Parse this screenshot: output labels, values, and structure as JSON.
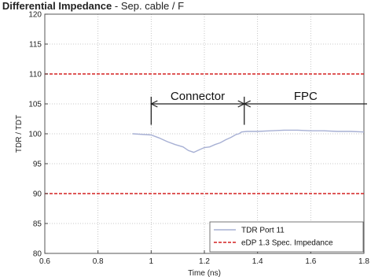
{
  "chart_data": {
    "type": "line",
    "title_fragment_bold": "s Differential Impedance",
    "title_fragment_rest": " - Sep. cable / F",
    "xlabel": "Time (ns)",
    "ylabel": "TDR / TDT",
    "xlim": [
      0.6,
      1.8
    ],
    "ylim": [
      80,
      120
    ],
    "x_ticks": [
      "0.6",
      "0.8",
      "1",
      "1.2",
      "1.4",
      "1.6",
      "1.8"
    ],
    "y_ticks": [
      "80",
      "85",
      "90",
      "95",
      "100",
      "105",
      "110",
      "115",
      "120"
    ],
    "grid": true,
    "legend_position": "bottom-right",
    "series": [
      {
        "name": "TDR Port 11",
        "color": "#a7b0d4",
        "style": "solid",
        "x": [
          0.93,
          1.0,
          1.03,
          1.06,
          1.09,
          1.12,
          1.14,
          1.16,
          1.18,
          1.2,
          1.22,
          1.24,
          1.26,
          1.28,
          1.3,
          1.32,
          1.33,
          1.34,
          1.36,
          1.38,
          1.4,
          1.45,
          1.5,
          1.55,
          1.6,
          1.65,
          1.7,
          1.75,
          1.8
        ],
        "y": [
          100.0,
          99.8,
          99.3,
          98.7,
          98.2,
          97.8,
          97.2,
          96.9,
          97.3,
          97.7,
          97.8,
          98.2,
          98.5,
          99.0,
          99.4,
          99.9,
          100.0,
          100.3,
          100.4,
          100.4,
          100.4,
          100.5,
          100.6,
          100.6,
          100.5,
          100.5,
          100.4,
          100.4,
          100.3
        ]
      },
      {
        "name": "eDP 1.3 Spec. Impedance",
        "color": "#d42020",
        "style": "dashed",
        "lines_y": [
          110,
          90
        ]
      }
    ],
    "annotations": [
      {
        "text": "Connector",
        "x_start": 1.0,
        "x_end": 1.35,
        "y": 105,
        "bar_y_range": [
          101.5,
          106.2
        ]
      },
      {
        "text": "FPC",
        "x_start": 1.35,
        "x_end": 1.8,
        "y": 105
      }
    ]
  }
}
